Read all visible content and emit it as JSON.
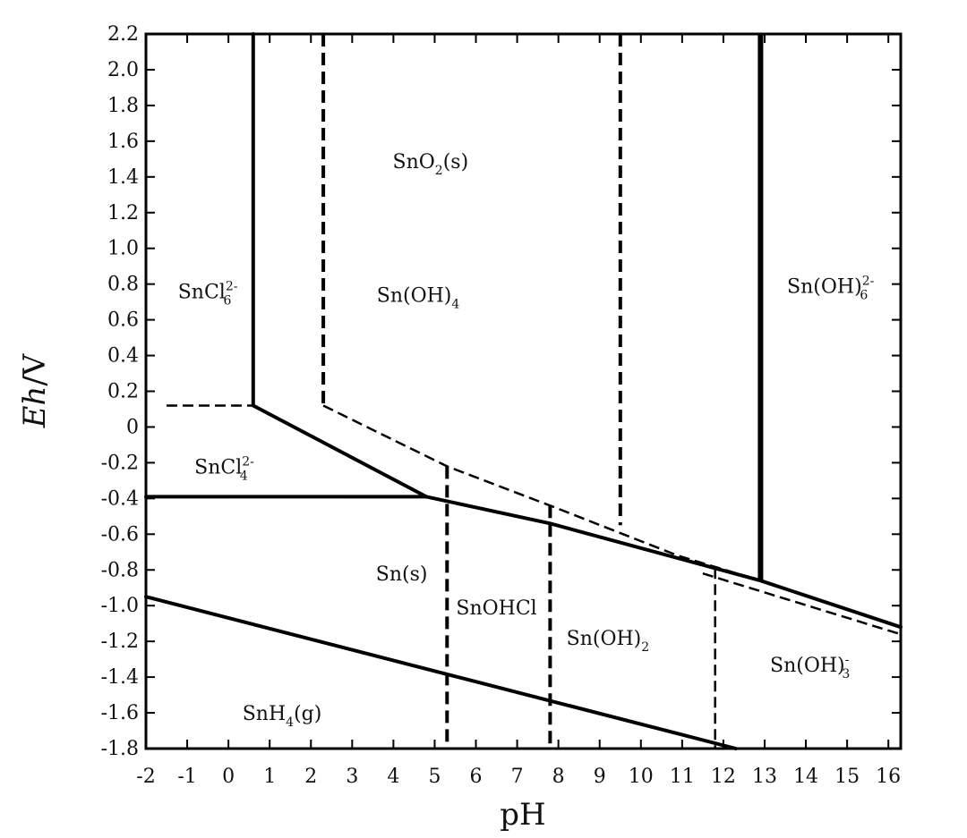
{
  "chart_data": {
    "type": "line",
    "xlabel": "pH",
    "ylabel_italic": "Eh",
    "ylabel_suffix": "/V",
    "xlim": [
      -2,
      16.3
    ],
    "ylim": [
      -1.8,
      2.2
    ],
    "x_ticks": [
      "-2",
      "-1",
      "0",
      "1",
      "2",
      "3",
      "4",
      "5",
      "6",
      "7",
      "8",
      "9",
      "10",
      "11",
      "12",
      "13",
      "14",
      "15",
      "16"
    ],
    "y_ticks": [
      "2.2",
      "2.0",
      "1.8",
      "1.6",
      "1.4",
      "1.2",
      "1.0",
      "0.8",
      "0.6",
      "0.4",
      "0.2",
      "0",
      "-0.2",
      "-0.4",
      "-0.6",
      "-0.8",
      "-1.0",
      "-1.2",
      "-1.4",
      "-1.6",
      "-1.8"
    ],
    "y_tick_values": [
      2.2,
      2.0,
      1.8,
      1.6,
      1.4,
      1.2,
      1.0,
      0.8,
      0.6,
      0.4,
      0.2,
      0,
      -0.2,
      -0.4,
      -0.6,
      -0.8,
      -1.0,
      -1.2,
      -1.4,
      -1.6,
      -1.8
    ],
    "x_tick_values": [
      -2,
      -1,
      0,
      1,
      2,
      3,
      4,
      5,
      6,
      7,
      8,
      9,
      10,
      11,
      12,
      13,
      14,
      15,
      16
    ],
    "boundaries": [
      {
        "style": "solid",
        "points": [
          [
            0.6,
            2.2
          ],
          [
            0.6,
            0.12
          ]
        ]
      },
      {
        "style": "solid",
        "points": [
          [
            0.6,
            0.12
          ],
          [
            4.8,
            -0.39
          ]
        ]
      },
      {
        "style": "solid",
        "points": [
          [
            -2,
            -0.39
          ],
          [
            4.8,
            -0.39
          ]
        ]
      },
      {
        "style": "solid",
        "points": [
          [
            4.8,
            -0.39
          ],
          [
            7.8,
            -0.54
          ],
          [
            12.9,
            -0.86
          ],
          [
            16.3,
            -1.12
          ]
        ]
      },
      {
        "style": "solid",
        "points": [
          [
            -2,
            -0.95
          ],
          [
            12.3,
            -1.8
          ]
        ]
      },
      {
        "style": "solid-heavy",
        "points": [
          [
            12.9,
            2.2
          ],
          [
            12.9,
            -0.86
          ]
        ]
      },
      {
        "style": "dashed",
        "points": [
          [
            -1.5,
            0.12
          ],
          [
            0.6,
            0.12
          ]
        ]
      },
      {
        "style": "dashed",
        "points": [
          [
            2.3,
            0.12
          ],
          [
            5.3,
            -0.22
          ],
          [
            7.8,
            -0.44
          ],
          [
            10.9,
            -0.72
          ],
          [
            12.9,
            -0.86
          ]
        ]
      },
      {
        "style": "dashed",
        "points": [
          [
            11.5,
            -0.82
          ],
          [
            16.3,
            -1.16
          ]
        ]
      },
      {
        "style": "dashed-heavy",
        "points": [
          [
            2.3,
            2.2
          ],
          [
            2.3,
            0.12
          ]
        ]
      },
      {
        "style": "dashed-heavy",
        "points": [
          [
            9.5,
            2.2
          ],
          [
            9.5,
            -0.55
          ]
        ]
      },
      {
        "style": "dashed-heavy",
        "points": [
          [
            5.3,
            -0.22
          ],
          [
            5.3,
            -1.8
          ]
        ]
      },
      {
        "style": "dashed-heavy",
        "points": [
          [
            7.8,
            -0.44
          ],
          [
            7.8,
            -1.8
          ]
        ]
      },
      {
        "style": "dashed",
        "points": [
          [
            11.8,
            -0.79
          ],
          [
            11.8,
            -1.8
          ]
        ]
      }
    ],
    "regions": [
      {
        "label": "SnO",
        "sub": "2",
        "sup": "",
        "after": "(s)",
        "x": 4.9,
        "y": 1.45
      },
      {
        "label": "Sn(OH)",
        "sub": "4",
        "sup": "",
        "after": "",
        "x": 4.6,
        "y": 0.7
      },
      {
        "label": "SnCl",
        "sub": "6",
        "sup": "2-",
        "after": "",
        "x": -0.5,
        "y": 0.72
      },
      {
        "label": "Sn(OH)",
        "sub": "6",
        "sup": "2-",
        "after": "",
        "x": 14.6,
        "y": 0.75
      },
      {
        "label": "SnCl",
        "sub": "4",
        "sup": "2-",
        "after": "",
        "x": -0.1,
        "y": -0.26
      },
      {
        "label": "Sn(s)",
        "sub": "",
        "sup": "",
        "after": "",
        "x": 4.2,
        "y": -0.86
      },
      {
        "label": "SnOHCl",
        "sub": "",
        "sup": "",
        "after": "",
        "x": 6.5,
        "y": -1.05
      },
      {
        "label": "Sn(OH)",
        "sub": "2",
        "sup": "",
        "after": "",
        "x": 9.2,
        "y": -1.22
      },
      {
        "label": "Sn(OH)",
        "sub": "3",
        "sup": "-",
        "after": "",
        "x": 14.1,
        "y": -1.37
      },
      {
        "label": "SnH",
        "sub": "4",
        "sup": "",
        "after": "(g)",
        "x": 1.3,
        "y": -1.64
      }
    ]
  }
}
